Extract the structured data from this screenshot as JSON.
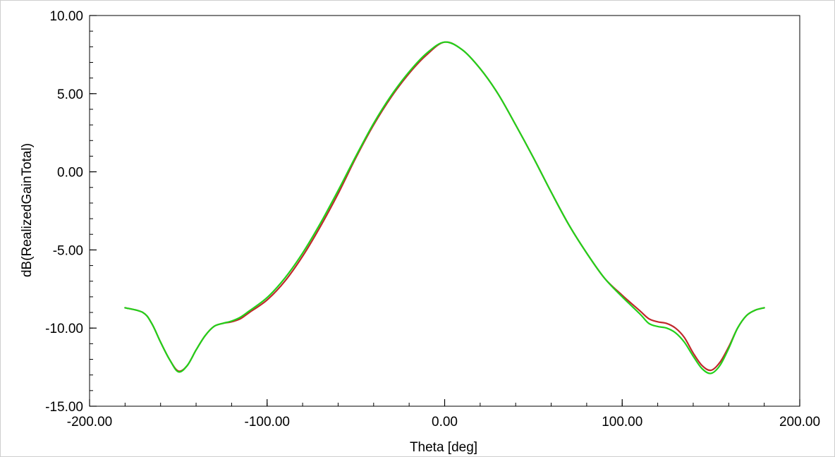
{
  "chart_data": {
    "type": "line",
    "title": "",
    "xlabel": "Theta [deg]",
    "ylabel": "dB(RealizedGainTotal)",
    "xlim": [
      -200,
      200
    ],
    "ylim": [
      -15,
      10
    ],
    "x_ticks": [
      -200,
      -100,
      0,
      100,
      200
    ],
    "y_ticks": [
      -15,
      -10,
      -5,
      0,
      5,
      10
    ],
    "x_tick_labels": [
      "-200.00",
      "-100.00",
      "0.00",
      "100.00",
      "200.00"
    ],
    "y_tick_labels": [
      "-15.00",
      "-10.00",
      "-5.00",
      "0.00",
      "5.00",
      "10.00"
    ],
    "grid": false,
    "legend": "none",
    "series": [
      {
        "color": "#c0282c",
        "x": [
          -180,
          -170,
          -165,
          -160,
          -155,
          -150,
          -145,
          -140,
          -135,
          -130,
          -125,
          -120,
          -115,
          -110,
          -100,
          -90,
          -80,
          -70,
          -60,
          -50,
          -40,
          -30,
          -20,
          -10,
          0,
          10,
          20,
          30,
          40,
          50,
          60,
          70,
          80,
          90,
          100,
          110,
          115,
          120,
          125,
          130,
          135,
          140,
          145,
          150,
          155,
          160,
          165,
          170,
          175,
          180
        ],
        "y": [
          -8.7,
          -9.0,
          -9.7,
          -10.9,
          -12.0,
          -12.75,
          -12.4,
          -11.4,
          -10.5,
          -9.9,
          -9.7,
          -9.6,
          -9.4,
          -9.0,
          -8.2,
          -7.0,
          -5.4,
          -3.5,
          -1.4,
          0.9,
          3.0,
          4.8,
          6.3,
          7.5,
          8.3,
          7.8,
          6.6,
          5.0,
          3.0,
          0.9,
          -1.3,
          -3.4,
          -5.2,
          -6.8,
          -7.9,
          -8.9,
          -9.4,
          -9.6,
          -9.7,
          -10.0,
          -10.6,
          -11.6,
          -12.4,
          -12.7,
          -12.2,
          -11.2,
          -10.0,
          -9.2,
          -8.85,
          -8.7
        ]
      },
      {
        "color": "#22d11a",
        "x": [
          -180,
          -170,
          -165,
          -160,
          -155,
          -150,
          -145,
          -140,
          -135,
          -130,
          -125,
          -120,
          -115,
          -110,
          -100,
          -90,
          -80,
          -70,
          -60,
          -50,
          -40,
          -30,
          -20,
          -10,
          0,
          10,
          20,
          30,
          40,
          50,
          60,
          70,
          80,
          90,
          100,
          110,
          115,
          120,
          125,
          130,
          135,
          140,
          145,
          150,
          155,
          160,
          165,
          170,
          175,
          180
        ],
        "y": [
          -8.7,
          -9.0,
          -9.7,
          -10.9,
          -12.0,
          -12.8,
          -12.4,
          -11.4,
          -10.5,
          -9.9,
          -9.7,
          -9.55,
          -9.3,
          -8.9,
          -8.05,
          -6.8,
          -5.2,
          -3.3,
          -1.2,
          1.0,
          3.1,
          4.9,
          6.4,
          7.6,
          8.3,
          7.8,
          6.6,
          5.0,
          3.0,
          0.9,
          -1.3,
          -3.4,
          -5.2,
          -6.8,
          -8.0,
          -9.1,
          -9.7,
          -9.9,
          -10.0,
          -10.3,
          -10.9,
          -11.8,
          -12.6,
          -12.9,
          -12.4,
          -11.3,
          -10.0,
          -9.2,
          -8.85,
          -8.7
        ]
      }
    ]
  }
}
